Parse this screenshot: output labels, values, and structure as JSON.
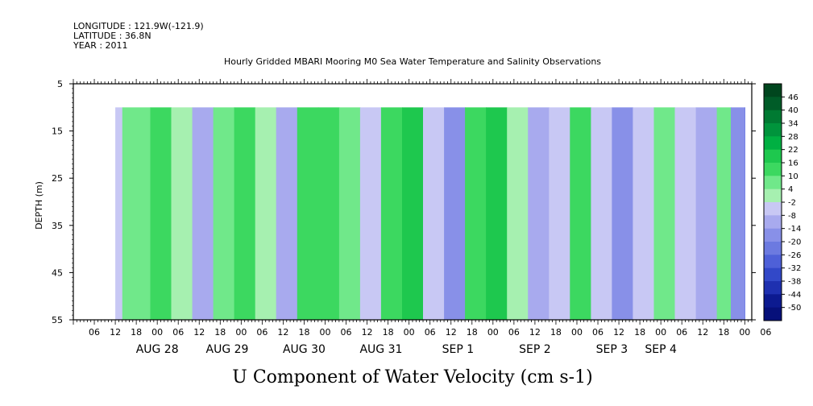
{
  "header": {
    "longitude": "LONGITUDE : 121.9W(-121.9)",
    "latitude": "LATITUDE : 36.8N",
    "year": "YEAR : 2011"
  },
  "chart_data": {
    "type": "heatmap",
    "title": "Hourly Gridded MBARI Mooring M0 Sea Water Temperature and Salinity Observations",
    "variable_label": "U Component of Water Velocity (cm s-1)",
    "ylabel": "DEPTH (m)",
    "y_ticks": [
      "5",
      "15",
      "25",
      "35",
      "45",
      "55"
    ],
    "y_tick_values": [
      5,
      15,
      25,
      35,
      45,
      55
    ],
    "ylim": [
      5,
      55
    ],
    "y_inverted": true,
    "data_depth_range": [
      10,
      55
    ],
    "hour_ticks": [
      "06",
      "12",
      "18",
      "00",
      "06",
      "12",
      "18",
      "00",
      "06",
      "12",
      "18",
      "00",
      "06",
      "12",
      "18",
      "00",
      "06",
      "12",
      "18",
      "00",
      "06",
      "12",
      "18",
      "00",
      "06",
      "12",
      "18",
      "00",
      "06",
      "12",
      "18",
      "00",
      "06"
    ],
    "hour_start": 6,
    "hour_step": 6,
    "x_hours_range": [
      0,
      194
    ],
    "data_hours_range": [
      12,
      192
    ],
    "day_labels": [
      "AUG 28",
      "AUG 29",
      "AUG 30",
      "AUG 31",
      "SEP 1",
      "SEP 2",
      "SEP 3",
      "SEP 4"
    ],
    "day_label_hours": [
      24,
      44,
      66,
      88,
      110,
      132,
      154,
      168
    ],
    "colorbar": {
      "levels": [
        "46",
        "40",
        "34",
        "28",
        "22",
        "16",
        "10",
        "4",
        "-2",
        "-8",
        "-14",
        "-20",
        "-26",
        "-32",
        "-38",
        "-44",
        "-50"
      ],
      "colors": [
        "#00461e",
        "#005c28",
        "#007a32",
        "#00943c",
        "#00b042",
        "#1ec84e",
        "#3cd860",
        "#70e88a",
        "#a6f0b0",
        "#c8c8f4",
        "#a8aaee",
        "#8890e8",
        "#6c7ae0",
        "#4e60d8",
        "#3248c8",
        "#1e30b0",
        "#0c1a90",
        "#06107a"
      ]
    },
    "bands": [
      {
        "h": 12,
        "u": -8
      },
      {
        "h": 14,
        "u": 8
      },
      {
        "h": 22,
        "u": 14
      },
      {
        "h": 28,
        "u": 2
      },
      {
        "h": 34,
        "u": -14
      },
      {
        "h": 40,
        "u": 6
      },
      {
        "h": 46,
        "u": 14
      },
      {
        "h": 52,
        "u": 2
      },
      {
        "h": 58,
        "u": -14
      },
      {
        "h": 64,
        "u": 10
      },
      {
        "h": 70,
        "u": 14
      },
      {
        "h": 76,
        "u": 4
      },
      {
        "h": 82,
        "u": -8
      },
      {
        "h": 88,
        "u": 12
      },
      {
        "h": 94,
        "u": 16
      },
      {
        "h": 100,
        "u": -4
      },
      {
        "h": 106,
        "u": -16
      },
      {
        "h": 112,
        "u": 12
      },
      {
        "h": 118,
        "u": 16
      },
      {
        "h": 124,
        "u": -2
      },
      {
        "h": 130,
        "u": -14
      },
      {
        "h": 136,
        "u": -6
      },
      {
        "h": 142,
        "u": 12
      },
      {
        "h": 148,
        "u": -8
      },
      {
        "h": 154,
        "u": -16
      },
      {
        "h": 160,
        "u": -6
      },
      {
        "h": 166,
        "u": 8
      },
      {
        "h": 172,
        "u": -4
      },
      {
        "h": 178,
        "u": -14
      },
      {
        "h": 184,
        "u": 6
      },
      {
        "h": 188,
        "u": -20
      },
      {
        "h": 192,
        "u": -22
      }
    ]
  }
}
